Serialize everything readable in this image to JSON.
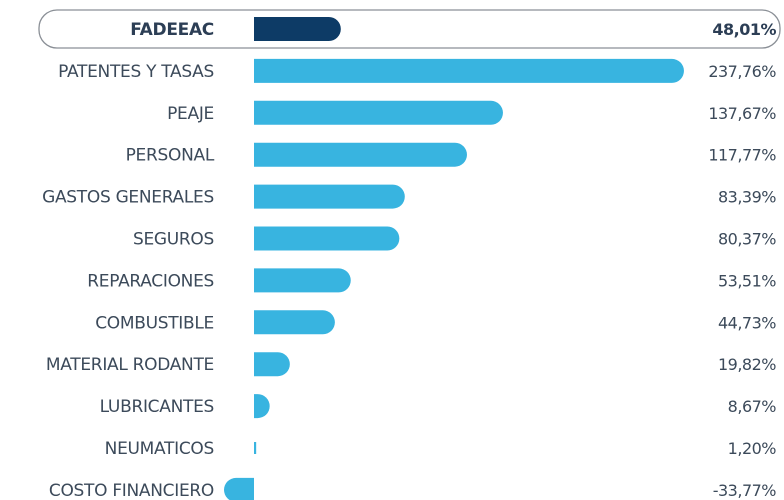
{
  "chart_data": {
    "type": "bar",
    "orientation": "horizontal",
    "categories": [
      "FADEEAC",
      "PATENTES Y TASAS",
      "PEAJE",
      "PERSONAL",
      "GASTOS GENERALES",
      "SEGUROS",
      "REPARACIONES",
      "COMBUSTIBLE",
      "MATERIAL RODANTE",
      "LUBRICANTES",
      "NEUMATICOS",
      "COSTO FINANCIERO"
    ],
    "values": [
      48.01,
      237.76,
      137.67,
      117.77,
      83.39,
      80.37,
      53.51,
      44.73,
      19.82,
      8.67,
      1.2,
      -33.77
    ],
    "value_labels": [
      "48,01%",
      "237,76%",
      "137,67%",
      "117,77%",
      "83,39%",
      "80,37%",
      "53,51%",
      "44,73%",
      "19,82%",
      "8,67%",
      "1,20%",
      "-33,77%"
    ],
    "highlight_category": "FADEEAC",
    "title": "",
    "xlabel": "",
    "ylabel": "",
    "xlim": [
      0,
      240
    ],
    "grid": false,
    "legend": "none"
  },
  "colors": {
    "bar": "#38b4e0",
    "highlight_bar": "#0d3b66",
    "highlight_frame": "#8a8f96",
    "text": "#3c4a5a"
  }
}
